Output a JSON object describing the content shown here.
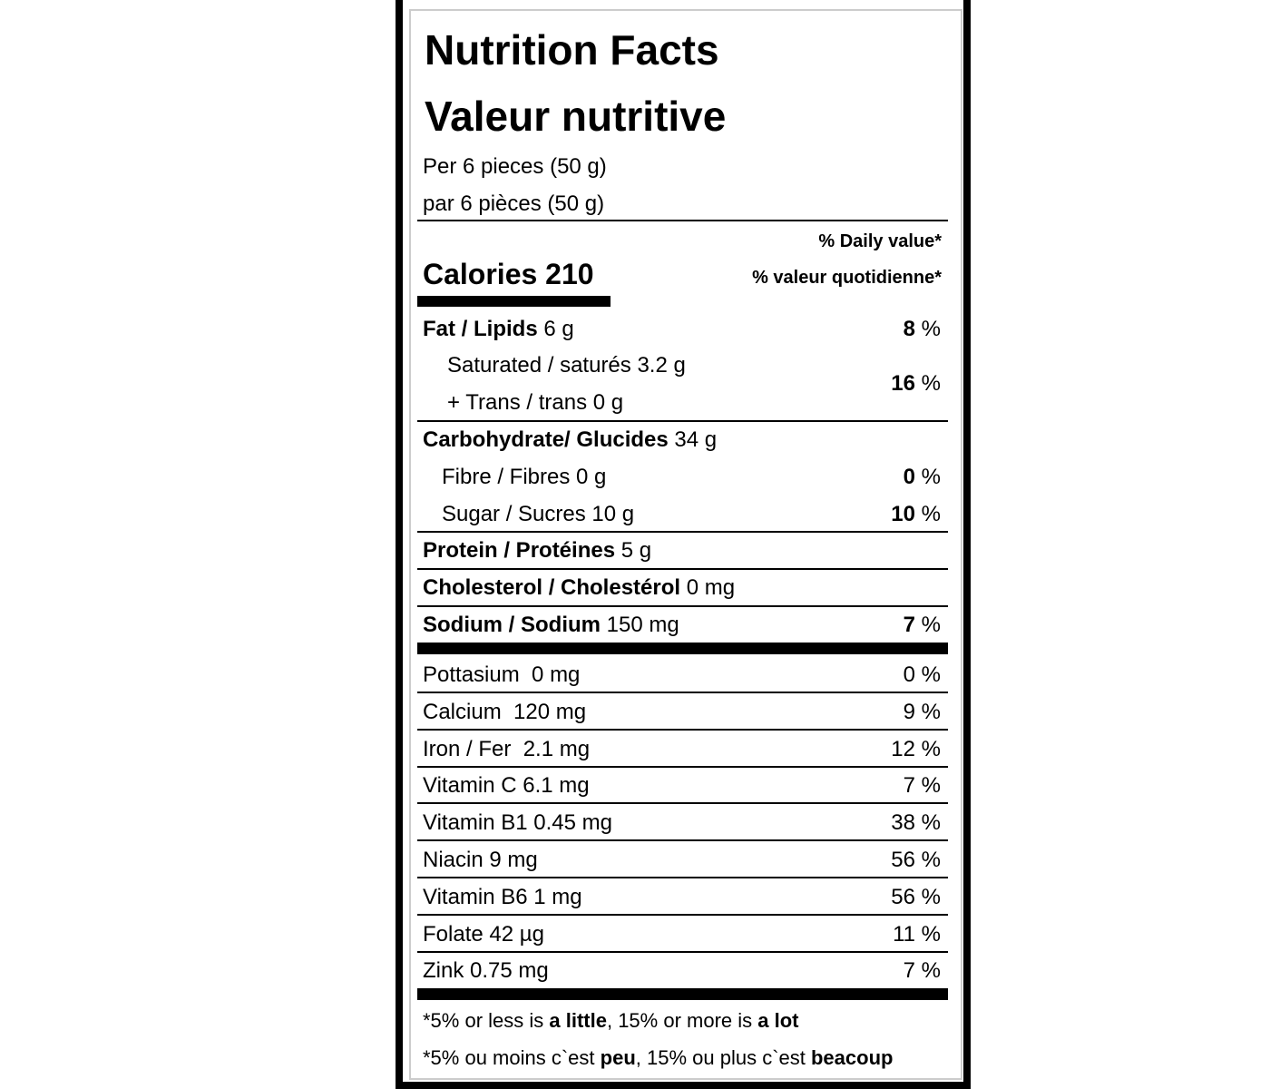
{
  "title_en": "Nutrition Facts",
  "title_fr": "Valeur nutritive",
  "serving_en": "Per 6 pieces (50 g)",
  "serving_fr": "par 6 pièces (50 g)",
  "dv_header_en": "% Daily value*",
  "dv_header_fr": "% valeur quotidienne*",
  "calories": {
    "label": "Calories",
    "value": 210
  },
  "nutrients": [
    {
      "name": "Fat / Lipids",
      "amount": "6 g",
      "dv": 8,
      "dv_unit": "%"
    },
    {
      "name": "Saturated / saturés 3.2 g",
      "name2": "+ Trans / trans 0 g",
      "dv": 16,
      "dv_unit": "%"
    },
    {
      "name": "Carbohydrate/ Glucides",
      "amount": "34 g"
    },
    {
      "name": "Fibre / Fibres 0 g",
      "dv": 0,
      "dv_unit": "%"
    },
    {
      "name": "Sugar / Sucres 10 g",
      "dv": 10,
      "dv_unit": "%"
    },
    {
      "name": "Protein / Protéines",
      "amount": "5 g"
    },
    {
      "name": "Cholesterol / Cholestérol",
      "amount": "0 mg"
    },
    {
      "name": "Sodium / Sodium",
      "amount": "150 mg",
      "dv": 7,
      "dv_unit": "%"
    }
  ],
  "vitamins_minerals": [
    {
      "name": "Pottasium  0 mg",
      "dv": 0,
      "dv_unit": "%"
    },
    {
      "name": "Calcium  120 mg",
      "dv": 9,
      "dv_unit": "%"
    },
    {
      "name": "Iron / Fer  2.1 mg",
      "dv": 12,
      "dv_unit": "%"
    },
    {
      "name": "Vitamin C 6.1 mg",
      "dv": 7,
      "dv_unit": "%"
    },
    {
      "name": "Vitamin B1 0.45 mg",
      "dv": 38,
      "dv_unit": "%"
    },
    {
      "name": "Niacin 9 mg",
      "dv": 56,
      "dv_unit": "%"
    },
    {
      "name": "Vitamin B6 1 mg",
      "dv": 56,
      "dv_unit": "%"
    },
    {
      "name": "Folate 42 µg",
      "dv": 11,
      "dv_unit": "%"
    },
    {
      "name": "Zink 0.75 mg",
      "dv": 7,
      "dv_unit": "%"
    }
  ],
  "footnote_en": [
    "*5% or less is ",
    "a little",
    ", 15% or more is ",
    "a lot"
  ],
  "footnote_fr": [
    "*5% ou moins c`est ",
    "peu",
    ", 15% ou plus c`est ",
    "beacoup"
  ]
}
